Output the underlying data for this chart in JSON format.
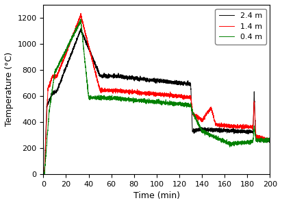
{
  "title": "",
  "xlabel": "Time (min)",
  "ylabel": "Temperature (°C)",
  "xlim": [
    0,
    200
  ],
  "ylim": [
    0,
    1300
  ],
  "xticks": [
    0,
    20,
    40,
    60,
    80,
    100,
    120,
    140,
    160,
    180,
    200
  ],
  "yticks": [
    0,
    200,
    400,
    600,
    800,
    1000,
    1200
  ],
  "legend_labels": [
    "2.4 m",
    "1.4 m",
    "0.4 m"
  ],
  "line_colors": [
    "black",
    "red",
    "green"
  ],
  "background_color": "#ffffff"
}
